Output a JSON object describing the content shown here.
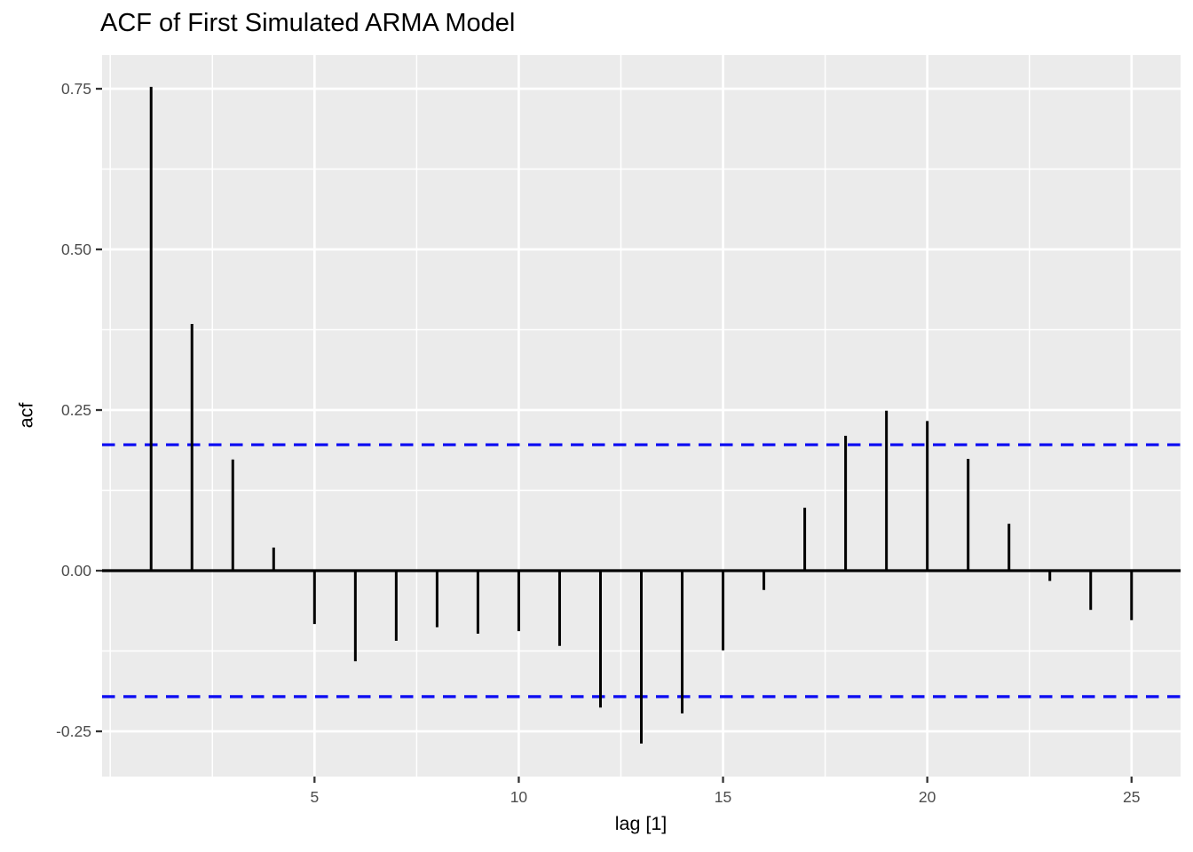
{
  "chart_data": {
    "type": "bar",
    "subtype": "acf-spike-plot",
    "title": "ACF of First Simulated ARMA Model",
    "xlabel": "lag [1]",
    "ylabel": "acf",
    "x": [
      1,
      2,
      3,
      4,
      5,
      6,
      7,
      8,
      9,
      10,
      11,
      12,
      13,
      14,
      15,
      16,
      17,
      18,
      19,
      20,
      21,
      22,
      23,
      24,
      25
    ],
    "values": [
      0.753,
      0.384,
      0.173,
      0.036,
      -0.083,
      -0.141,
      -0.109,
      -0.088,
      -0.098,
      -0.094,
      -0.117,
      -0.213,
      -0.269,
      -0.222,
      -0.124,
      -0.03,
      0.098,
      0.21,
      0.249,
      0.233,
      0.174,
      0.073,
      -0.016,
      -0.061,
      -0.077
    ],
    "conf_bounds": [
      -0.196,
      0.196
    ],
    "zero_line": 0,
    "xlim": [
      -0.2,
      26.2
    ],
    "ylim": [
      -0.3204,
      0.8025
    ],
    "x_major_ticks": [
      5,
      10,
      15,
      20,
      25
    ],
    "x_tick_labels": [
      "5",
      "10",
      "15",
      "20",
      "25"
    ],
    "x_minor_gridlines": [
      0,
      2.5,
      7.5,
      12.5,
      17.5,
      22.5
    ],
    "y_major_ticks": [
      0.75,
      0.5,
      0.25,
      0,
      -0.25
    ],
    "y_tick_labels": [
      "0.75",
      "0.50",
      "0.25",
      "0.00",
      "-0.25"
    ],
    "y_minor_gridlines": [
      0.625,
      0.375,
      0.125,
      -0.125
    ],
    "grid": true,
    "legend": "none",
    "colors": {
      "background": "#FFFFFF",
      "panel_bg": "#EBEBEB",
      "gridline": "#FFFFFF",
      "spike": "#000000",
      "zero_line": "#000000",
      "conf_line": "#0D0DF2",
      "tick_mark": "#333333",
      "tick_label": "#4D4D4D",
      "title": "#000000"
    }
  }
}
